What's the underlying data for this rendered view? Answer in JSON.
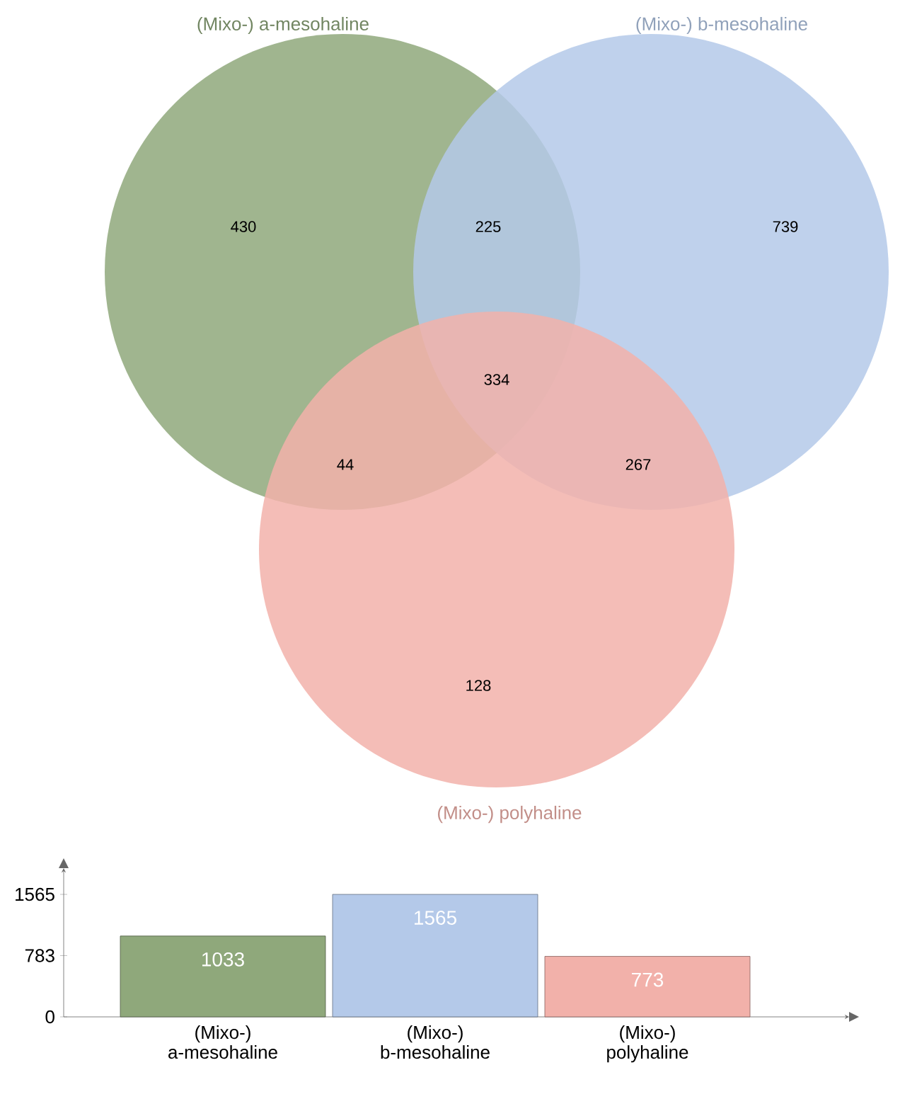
{
  "chart_data": [
    {
      "type": "other",
      "annotations": [
        "(Mixo-) a-mesohaline",
        "(Mixo-) b-mesohaline",
        "(Mixo-) polyhaline"
      ],
      "categories": [
        null,
        null,
        null,
        null,
        null,
        null,
        null
      ],
      "values": [
        430,
        225,
        739,
        334,
        44,
        267,
        128
      ],
      "data_labels": true
    },
    {
      "type": "bar",
      "categories": [
        "(Mixo-) a-mesohaline",
        "(Mixo-) b-mesohaline",
        "(Mixo-) polyhaline"
      ],
      "values": [
        1033,
        1565,
        773
      ],
      "colors": [
        "#8fa87b",
        "#b4c9e9",
        "#f2b1aa"
      ],
      "ylim": [
        0,
        1900
      ],
      "yticks": [
        0,
        783,
        1565
      ],
      "data_labels": true
    }
  ]
}
